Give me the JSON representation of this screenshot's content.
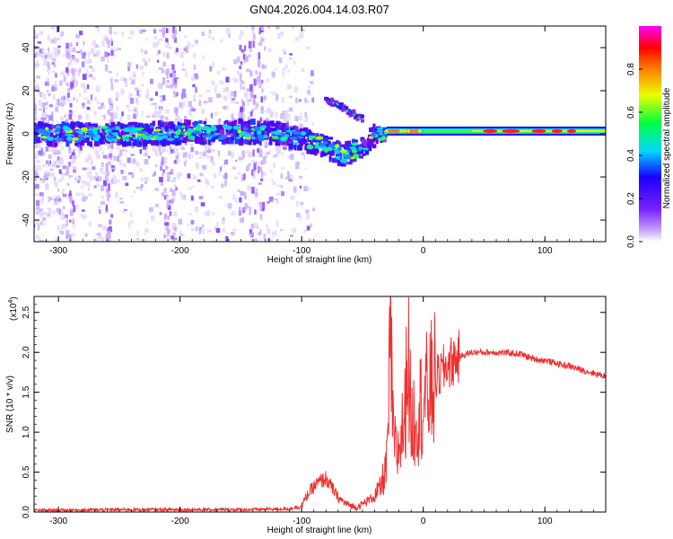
{
  "figure_title": "GN04.2026.004.14.03.R07",
  "chart_data": [
    {
      "type": "heatmap",
      "title": "GN04.2026.004.14.03.R07",
      "xlabel": "Height of straight line (km)",
      "ylabel": "Frequency (Hz)",
      "xlim": [
        -320,
        150
      ],
      "ylim": [
        -50,
        50
      ],
      "x_ticks": [
        -300,
        -200,
        -100,
        0,
        100
      ],
      "y_ticks": [
        -40,
        -20,
        0,
        20,
        40
      ],
      "x_tick_labels": [
        "-300",
        "-200",
        "-100",
        "0",
        "100"
      ],
      "y_tick_labels": [
        "-40",
        "-20",
        "0",
        "20",
        "40"
      ],
      "colorbar": {
        "label": "Normalized spectral amplitude",
        "range": [
          0,
          1
        ],
        "ticks": [
          0.0,
          0.2,
          0.4,
          0.6,
          0.8
        ],
        "tick_labels": [
          "0.0",
          "0.2",
          "0.4",
          "0.6",
          "0.8"
        ],
        "colormap": [
          "#ffffff",
          "#8a2be2",
          "#2000ff",
          "#00ffff",
          "#00ff00",
          "#ffff00",
          "#ff8000",
          "#ff0000",
          "#ff00ff"
        ]
      },
      "ridge": {
        "description_points_x": [
          -320,
          -250,
          -200,
          -150,
          -120,
          -100,
          -80,
          -65,
          -50,
          -40,
          -30,
          -10,
          0,
          50,
          100,
          150
        ],
        "description_points_freq": [
          0,
          0,
          0.5,
          1,
          0,
          -2,
          -6,
          -10,
          -6,
          -1,
          0.5,
          1,
          1,
          1.5,
          1.5,
          1.5
        ],
        "secondary_branch_x": [
          -80,
          -70,
          -60,
          -50
        ],
        "secondary_branch_freq": [
          15,
          14,
          10,
          7
        ]
      }
    },
    {
      "type": "line",
      "title": "",
      "xlabel": "Height of straight line (km)",
      "ylabel": "SNR (10 * v/v)",
      "y_scale_label": "(x10",
      "y_scale_exponent": "4",
      "y_scale_suffix": ")",
      "xlim": [
        -320,
        150
      ],
      "ylim": [
        0,
        2.7
      ],
      "x_ticks": [
        -300,
        -200,
        -100,
        0,
        100
      ],
      "y_ticks": [
        0.0,
        0.5,
        1.0,
        1.5,
        2.0,
        2.5
      ],
      "x_tick_labels": [
        "-300",
        "-200",
        "-100",
        "0",
        "100"
      ],
      "y_tick_labels": [
        "0.0",
        "0.5",
        "1.0",
        "1.5",
        "2.0",
        "2.5"
      ],
      "color": "#ee3030",
      "series": [
        {
          "name": "SNR",
          "x": [
            -320,
            -250,
            -200,
            -150,
            -110,
            -100,
            -95,
            -90,
            -85,
            -80,
            -75,
            -70,
            -65,
            -60,
            -55,
            -50,
            -45,
            -40,
            -35,
            -30,
            -28,
            -27,
            -25,
            -22,
            -20,
            -15,
            -13,
            -10,
            -5,
            0,
            10,
            20,
            30,
            40,
            60,
            80,
            90,
            100,
            110,
            115,
            120,
            130,
            140,
            150
          ],
          "y": [
            0.02,
            0.03,
            0.03,
            0.03,
            0.04,
            0.08,
            0.22,
            0.32,
            0.38,
            0.42,
            0.3,
            0.18,
            0.12,
            0.08,
            0.06,
            0.1,
            0.15,
            0.2,
            0.3,
            0.6,
            1.5,
            2.6,
            1.0,
            0.7,
            0.8,
            1.2,
            2.2,
            1.1,
            1.25,
            1.4,
            1.65,
            1.85,
            1.95,
            2.0,
            2.0,
            1.98,
            1.92,
            1.9,
            1.86,
            1.84,
            1.83,
            1.78,
            1.74,
            1.7
          ]
        }
      ]
    }
  ]
}
